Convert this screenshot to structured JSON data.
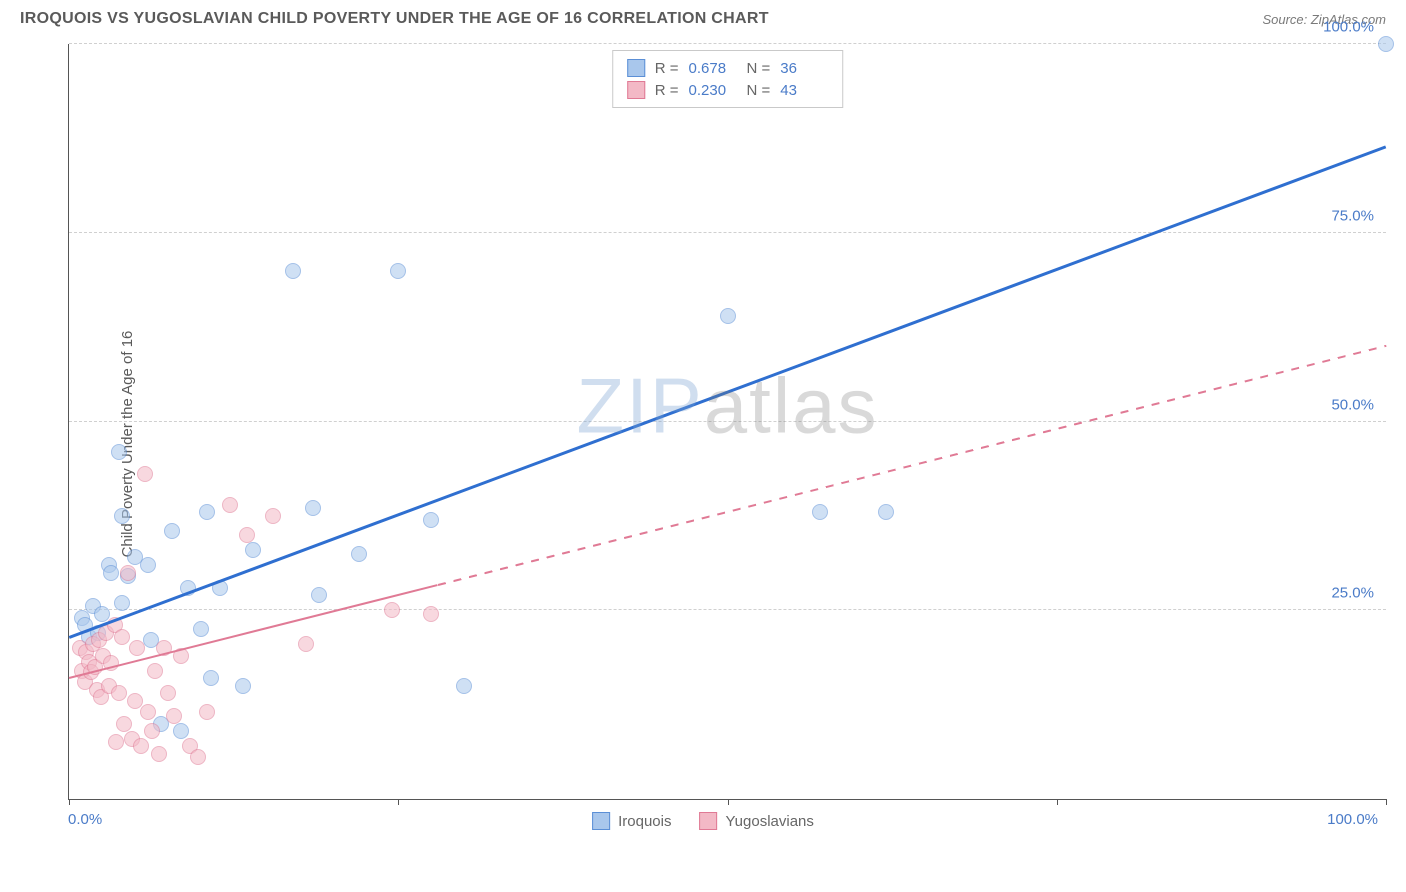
{
  "header": {
    "title": "IROQUOIS VS YUGOSLAVIAN CHILD POVERTY UNDER THE AGE OF 16 CORRELATION CHART",
    "source": "Source: ZipAtlas.com"
  },
  "y_axis_label": "Child Poverty Under the Age of 16",
  "watermark": {
    "part1": "ZIP",
    "part2": "atlas"
  },
  "chart": {
    "type": "scatter",
    "background_color": "#ffffff",
    "grid_color": "#d0d0d0",
    "axis_color": "#555555",
    "tick_label_color": "#4a7bc8",
    "tick_label_fontsize": 15,
    "xlim": [
      0,
      100
    ],
    "ylim": [
      0,
      100
    ],
    "x_ticks": [
      0,
      25,
      50,
      75,
      100
    ],
    "y_gridlines": [
      25,
      50,
      75,
      100
    ],
    "y_tick_labels": [
      {
        "value": 25,
        "label": "25.0%"
      },
      {
        "value": 50,
        "label": "50.0%"
      },
      {
        "value": 75,
        "label": "75.0%"
      },
      {
        "value": 100,
        "label": "100.0%"
      }
    ],
    "x_tick_labels": {
      "left": "0.0%",
      "right": "100.0%"
    },
    "marker_radius": 8,
    "marker_opacity": 0.55,
    "series": [
      {
        "name": "Iroquois",
        "color_fill": "#a9c7ec",
        "color_stroke": "#5b8fd6",
        "trend": {
          "color": "#2f6fd0",
          "width": 3,
          "solid_range": [
            0,
            100
          ],
          "y_at_x0": 21.5,
          "y_at_x100": 86.5
        },
        "points": [
          {
            "x": 1,
            "y": 24
          },
          {
            "x": 1.2,
            "y": 23
          },
          {
            "x": 1.5,
            "y": 21.5
          },
          {
            "x": 1.8,
            "y": 25.5
          },
          {
            "x": 2.2,
            "y": 22
          },
          {
            "x": 2.5,
            "y": 24.5
          },
          {
            "x": 3,
            "y": 31
          },
          {
            "x": 3.2,
            "y": 30
          },
          {
            "x": 3.8,
            "y": 46
          },
          {
            "x": 4,
            "y": 37.5
          },
          {
            "x": 4,
            "y": 26
          },
          {
            "x": 4.5,
            "y": 29.5
          },
          {
            "x": 5,
            "y": 32
          },
          {
            "x": 6,
            "y": 31
          },
          {
            "x": 6.2,
            "y": 21
          },
          {
            "x": 7,
            "y": 10
          },
          {
            "x": 7.8,
            "y": 35.5
          },
          {
            "x": 8.5,
            "y": 9
          },
          {
            "x": 9,
            "y": 28
          },
          {
            "x": 10,
            "y": 22.5
          },
          {
            "x": 10.5,
            "y": 38
          },
          {
            "x": 10.8,
            "y": 16
          },
          {
            "x": 11.5,
            "y": 28
          },
          {
            "x": 13.2,
            "y": 15
          },
          {
            "x": 14,
            "y": 33
          },
          {
            "x": 17,
            "y": 70
          },
          {
            "x": 18.5,
            "y": 38.5
          },
          {
            "x": 19,
            "y": 27
          },
          {
            "x": 22,
            "y": 32.5
          },
          {
            "x": 25,
            "y": 70
          },
          {
            "x": 27.5,
            "y": 37
          },
          {
            "x": 30,
            "y": 15
          },
          {
            "x": 50,
            "y": 64
          },
          {
            "x": 57,
            "y": 38
          },
          {
            "x": 62,
            "y": 38
          },
          {
            "x": 100,
            "y": 100
          }
        ]
      },
      {
        "name": "Yugoslavians",
        "color_fill": "#f3b9c6",
        "color_stroke": "#e07a95",
        "trend": {
          "color": "#e07a95",
          "width": 2.5,
          "solid_range": [
            0,
            28
          ],
          "dashed_range": [
            28,
            100
          ],
          "y_at_x0": 16,
          "y_at_x100": 60
        },
        "points": [
          {
            "x": 0.8,
            "y": 20
          },
          {
            "x": 1,
            "y": 17
          },
          {
            "x": 1.2,
            "y": 15.5
          },
          {
            "x": 1.3,
            "y": 19.5
          },
          {
            "x": 1.5,
            "y": 18.2
          },
          {
            "x": 1.7,
            "y": 16.8
          },
          {
            "x": 1.8,
            "y": 20.5
          },
          {
            "x": 2,
            "y": 17.5
          },
          {
            "x": 2.1,
            "y": 14.5
          },
          {
            "x": 2.3,
            "y": 21
          },
          {
            "x": 2.4,
            "y": 13.5
          },
          {
            "x": 2.6,
            "y": 19
          },
          {
            "x": 2.8,
            "y": 22
          },
          {
            "x": 3,
            "y": 15
          },
          {
            "x": 3.2,
            "y": 18
          },
          {
            "x": 3.5,
            "y": 23
          },
          {
            "x": 3.6,
            "y": 7.5
          },
          {
            "x": 3.8,
            "y": 14
          },
          {
            "x": 4,
            "y": 21.5
          },
          {
            "x": 4.2,
            "y": 10
          },
          {
            "x": 4.5,
            "y": 30
          },
          {
            "x": 4.8,
            "y": 8
          },
          {
            "x": 5,
            "y": 13
          },
          {
            "x": 5.2,
            "y": 20
          },
          {
            "x": 5.5,
            "y": 7
          },
          {
            "x": 5.8,
            "y": 43
          },
          {
            "x": 6,
            "y": 11.5
          },
          {
            "x": 6.3,
            "y": 9
          },
          {
            "x": 6.5,
            "y": 17
          },
          {
            "x": 6.8,
            "y": 6
          },
          {
            "x": 7.2,
            "y": 20
          },
          {
            "x": 7.5,
            "y": 14
          },
          {
            "x": 8,
            "y": 11
          },
          {
            "x": 8.5,
            "y": 19
          },
          {
            "x": 9.2,
            "y": 7
          },
          {
            "x": 9.8,
            "y": 5.5
          },
          {
            "x": 10.5,
            "y": 11.5
          },
          {
            "x": 12.2,
            "y": 39
          },
          {
            "x": 13.5,
            "y": 35
          },
          {
            "x": 15.5,
            "y": 37.5
          },
          {
            "x": 18,
            "y": 20.5
          },
          {
            "x": 24.5,
            "y": 25
          },
          {
            "x": 27.5,
            "y": 24.5
          }
        ]
      }
    ]
  },
  "legend_top": {
    "rows": [
      {
        "swatch_fill": "#a9c7ec",
        "swatch_stroke": "#5b8fd6",
        "r_label": "R =",
        "r_value": "0.678",
        "n_label": "N =",
        "n_value": "36"
      },
      {
        "swatch_fill": "#f3b9c6",
        "swatch_stroke": "#e07a95",
        "r_label": "R =",
        "r_value": "0.230",
        "n_label": "N =",
        "n_value": "43"
      }
    ]
  },
  "legend_bottom": {
    "items": [
      {
        "swatch_fill": "#a9c7ec",
        "swatch_stroke": "#5b8fd6",
        "label": "Iroquois"
      },
      {
        "swatch_fill": "#f3b9c6",
        "swatch_stroke": "#e07a95",
        "label": "Yugoslavians"
      }
    ]
  }
}
